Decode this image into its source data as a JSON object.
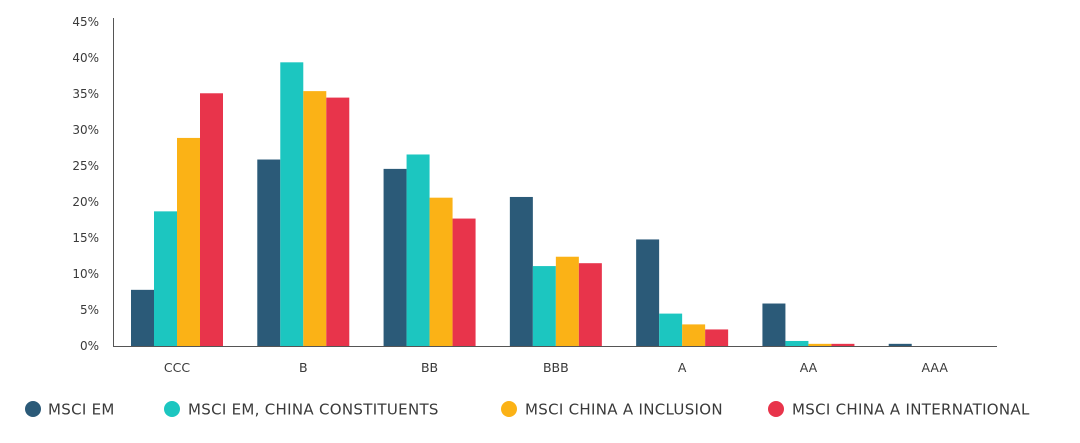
{
  "chart_data": {
    "type": "bar",
    "title": "",
    "xlabel": "",
    "ylabel": "",
    "categories": [
      "CCC",
      "B",
      "BB",
      "BBB",
      "A",
      "AA",
      "AAA"
    ],
    "ylim": [
      0,
      45
    ],
    "yticks": [
      0,
      5,
      10,
      15,
      20,
      25,
      30,
      35,
      40,
      45
    ],
    "ytick_labels": [
      "0%",
      "5%",
      "10%",
      "15%",
      "20%",
      "25%",
      "30%",
      "35%",
      "40%",
      "45%"
    ],
    "grid": false,
    "legend_position": "bottom",
    "series": [
      {
        "name": "MSCI EM",
        "color": "#2b5a78",
        "values": [
          7.8,
          25.9,
          24.6,
          20.7,
          14.8,
          5.9,
          0.3
        ]
      },
      {
        "name": "MSCI EM, CHINA CONSTITUENTS",
        "color": "#1cc6c0",
        "values": [
          18.7,
          39.4,
          26.6,
          11.1,
          4.5,
          0.7,
          0.0
        ]
      },
      {
        "name": "MSCI CHINA A INCLUSION",
        "color": "#fbb216",
        "values": [
          28.9,
          35.4,
          20.6,
          12.4,
          3.0,
          0.3,
          0.0
        ]
      },
      {
        "name": "MSCI CHINA A INTERNATIONAL",
        "color": "#e8344b",
        "values": [
          35.1,
          34.5,
          17.7,
          11.5,
          2.3,
          0.3,
          0.0
        ]
      }
    ]
  }
}
